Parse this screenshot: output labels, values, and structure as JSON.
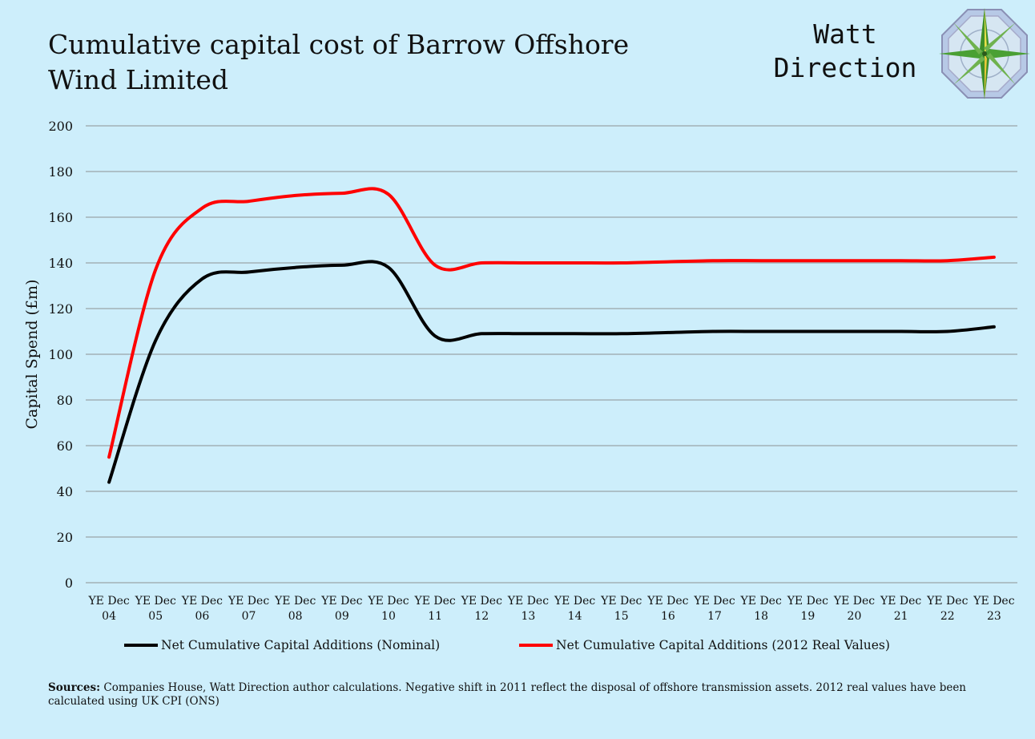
{
  "header": {
    "title": "Cumulative capital cost of Barrow Offshore Wind Limited",
    "brand_line1": "Watt",
    "brand_line2": "Direction"
  },
  "sources": {
    "label": "Sources:",
    "text": "Companies House, Watt Direction author calculations.  Negative shift in 2011 reflect the disposal of offshore transmission assets. 2012 real values have been calculated using UK CPI (ONS)"
  },
  "chart_data": {
    "type": "line",
    "title": "Cumulative capital cost of Barrow Offshore Wind Limited",
    "xlabel": "",
    "ylabel": "Capital Spend (£m)",
    "ylim": [
      0,
      200
    ],
    "yticks": [
      0,
      20,
      40,
      60,
      80,
      100,
      120,
      140,
      160,
      180,
      200
    ],
    "grid": true,
    "legend_position": "bottom",
    "categories": [
      {
        "top": "YE Dec",
        "bottom": "04"
      },
      {
        "top": "YE Dec",
        "bottom": "05"
      },
      {
        "top": "YE Dec",
        "bottom": "06"
      },
      {
        "top": "YE Dec",
        "bottom": "07"
      },
      {
        "top": "YE Dec",
        "bottom": "08"
      },
      {
        "top": "YE Dec",
        "bottom": "09"
      },
      {
        "top": "YE Dec",
        "bottom": "10"
      },
      {
        "top": "YE Dec",
        "bottom": "11"
      },
      {
        "top": "YE Dec",
        "bottom": "12"
      },
      {
        "top": "YE Dec",
        "bottom": "13"
      },
      {
        "top": "YE Dec",
        "bottom": "14"
      },
      {
        "top": "YE Dec",
        "bottom": "15"
      },
      {
        "top": "YE Dec",
        "bottom": "16"
      },
      {
        "top": "YE Dec",
        "bottom": "17"
      },
      {
        "top": "YE Dec",
        "bottom": "18"
      },
      {
        "top": "YE Dec",
        "bottom": "19"
      },
      {
        "top": "YE Dec",
        "bottom": "20"
      },
      {
        "top": "YE Dec",
        "bottom": "21"
      },
      {
        "top": "YE Dec",
        "bottom": "22"
      },
      {
        "top": "YE Dec",
        "bottom": "23"
      }
    ],
    "series": [
      {
        "name": "Net Cumulative Capital Additions (Nominal)",
        "color": "#000000",
        "values": [
          44,
          106,
          133,
          136,
          138,
          139,
          138,
          108,
          109,
          109,
          109,
          109,
          109.5,
          110,
          110,
          110,
          110,
          110,
          110,
          112
        ]
      },
      {
        "name": "Net Cumulative Capital Additions (2012 Real Values)",
        "color": "#ff0000",
        "values": [
          55,
          137,
          164,
          167,
          169.5,
          170.5,
          170,
          139,
          140,
          140,
          140,
          140,
          140.5,
          141,
          141,
          141,
          141,
          141,
          141,
          142.5
        ]
      }
    ]
  },
  "colors": {
    "background": "#cdeefb",
    "gridline": "#9aa4a8"
  }
}
